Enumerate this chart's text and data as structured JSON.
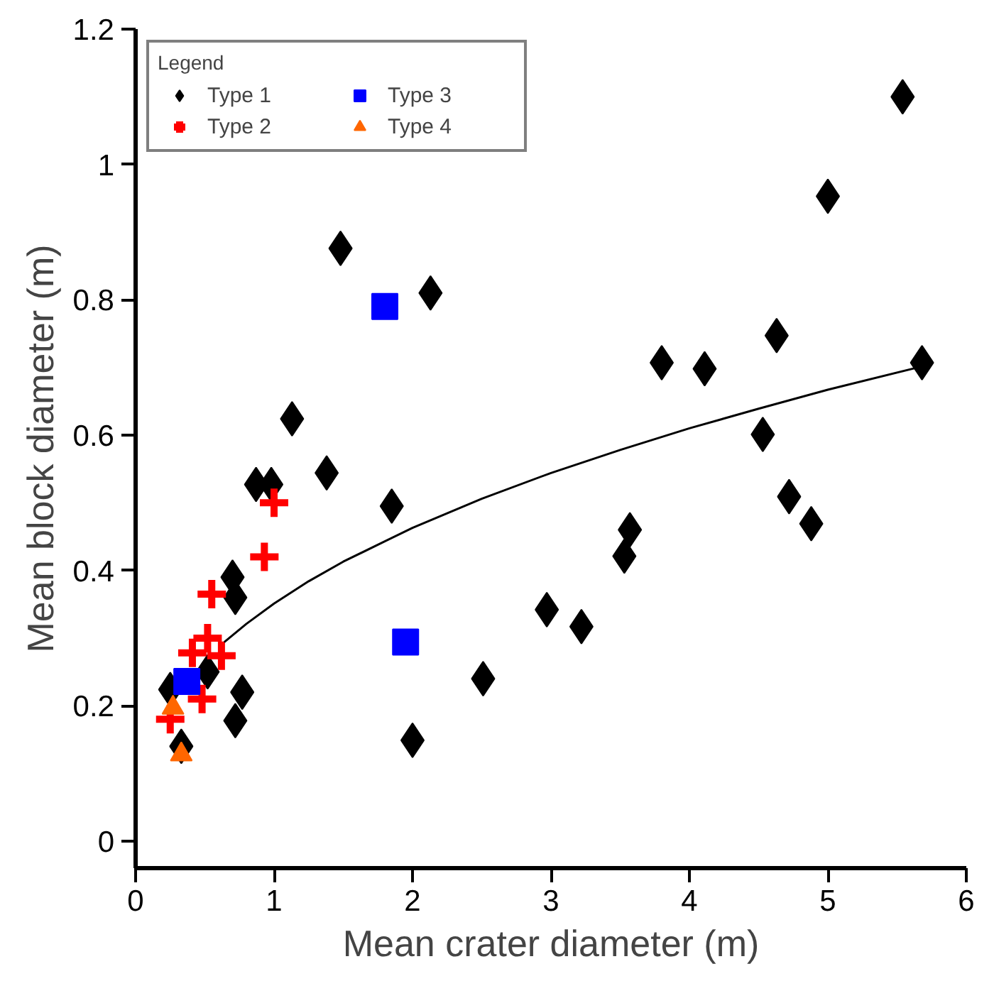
{
  "chart_data": {
    "type": "scatter",
    "xlabel": "Mean crater diameter (m)",
    "ylabel": "Mean block diameter (m)",
    "legend_title": "Legend",
    "legend": "top left",
    "grid": false,
    "xlim": [
      0,
      6
    ],
    "ylim": [
      -0.04,
      1.2
    ],
    "xticks": [
      0,
      1,
      2,
      3,
      4,
      5,
      6
    ],
    "yticks": [
      0,
      0.2,
      0.4,
      0.6,
      0.8,
      1,
      1.2
    ],
    "series": [
      {
        "name": "Type 1",
        "color": "#000000",
        "marker": "diamond",
        "x": [
          1.13,
          1.48,
          2.13,
          0.87,
          0.98,
          1.38,
          1.85,
          0.7,
          0.72,
          0.52,
          0.25,
          0.77,
          0.72,
          0.33,
          2.0,
          2.51,
          2.97,
          3.22,
          3.53,
          3.57,
          3.8,
          4.11,
          4.53,
          4.63,
          4.72,
          4.88,
          5.0,
          5.54,
          5.68
        ],
        "values": [
          0.624,
          0.876,
          0.81,
          0.527,
          0.527,
          0.544,
          0.495,
          0.39,
          0.36,
          0.25,
          0.224,
          0.22,
          0.178,
          0.14,
          0.149,
          0.24,
          0.342,
          0.317,
          0.421,
          0.46,
          0.707,
          0.698,
          0.601,
          0.747,
          0.509,
          0.469,
          0.953,
          1.1,
          0.707
        ]
      },
      {
        "name": "Type 2",
        "color": "#ff0000",
        "marker": "cross",
        "x": [
          1.0,
          0.93,
          0.55,
          0.52,
          0.41,
          0.62,
          0.48,
          0.25
        ],
        "values": [
          0.5,
          0.42,
          0.365,
          0.3,
          0.278,
          0.274,
          0.21,
          0.18
        ]
      },
      {
        "name": "Type 3",
        "color": "#0000ff",
        "marker": "square",
        "x": [
          0.37,
          1.95,
          1.8
        ],
        "values": [
          0.236,
          0.294,
          0.79
        ]
      },
      {
        "name": "Type 4",
        "color": "#ff6600",
        "marker": "triangle",
        "x": [
          0.27,
          0.33
        ],
        "values": [
          0.197,
          0.128
        ]
      },
      {
        "type": "line",
        "color": "#000000",
        "marker": "none",
        "x": [
          0.64,
          0.8,
          1,
          1.25,
          1.5,
          2,
          2.5,
          3,
          3.5,
          4,
          4.5,
          5,
          5.65
        ],
        "values": [
          0.294,
          0.321,
          0.351,
          0.384,
          0.413,
          0.463,
          0.506,
          0.544,
          0.578,
          0.61,
          0.639,
          0.667,
          0.7
        ]
      }
    ]
  }
}
